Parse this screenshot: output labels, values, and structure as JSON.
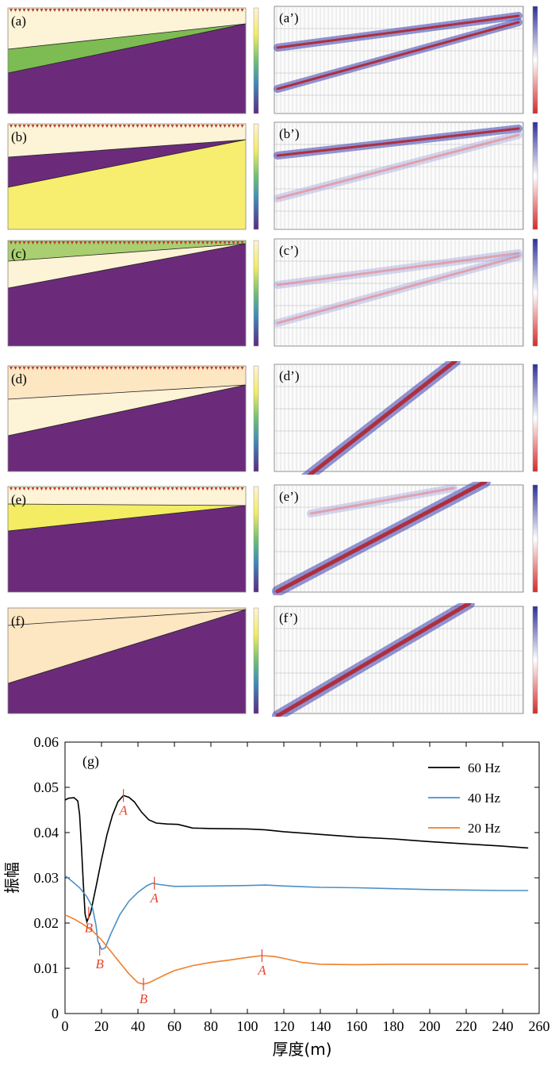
{
  "panels": [
    {
      "id": "a",
      "model_label": "(a)",
      "section_label": "(a’)",
      "model_fill": {
        "top": "#fdf3d6",
        "mid": "#7dbb53",
        "bottom": "#6b2b7a"
      }
    },
    {
      "id": "b",
      "model_label": "(b)",
      "section_label": "(b’)",
      "model_fill": {
        "top": "#fdf3d6",
        "mid": "#6b2b7a",
        "bottom": "#f7ed6e"
      }
    },
    {
      "id": "c",
      "model_label": "(c)",
      "section_label": "(c’)",
      "model_fill": {
        "top": "#a9cf70",
        "mid": "#fdf3d6",
        "bottom": "#6b2b7a"
      }
    },
    {
      "id": "d",
      "model_label": "(d)",
      "section_label": "(d’)",
      "model_fill": {
        "top": "#fde6c2",
        "mid": "#fdf3d6",
        "bottom": "#6b2b7a"
      }
    },
    {
      "id": "e",
      "model_label": "(e)",
      "section_label": "(e’)",
      "model_fill": {
        "top": "#fdf3d6",
        "mid": "#f4ec62",
        "bottom": "#6b2b7a"
      }
    },
    {
      "id": "f",
      "model_label": "(f)",
      "section_label": "(f’)",
      "model_fill": {
        "top": "#fde6c2",
        "mid": "#fde6c2",
        "bottom": "#6b2b7a"
      }
    }
  ],
  "chart_data": {
    "type": "line",
    "panel_label": "(g)",
    "xlabel": "厚度(m)",
    "ylabel": "振幅",
    "xlim": [
      0,
      260
    ],
    "ylim": [
      0,
      0.06
    ],
    "xticks": [
      "0",
      "20",
      "40",
      "60",
      "80",
      "100",
      "120",
      "140",
      "160",
      "180",
      "200",
      "220",
      "240",
      "260"
    ],
    "yticks": [
      "0",
      "0.01",
      "0.02",
      "0.03",
      "0.04",
      "0.05",
      "0.06"
    ],
    "legend_position": "top-right",
    "series": [
      {
        "name": "60 Hz",
        "color": "#000000",
        "points": [
          [
            0,
            0.0472
          ],
          [
            2,
            0.0476
          ],
          [
            5,
            0.0477
          ],
          [
            7,
            0.047
          ],
          [
            8,
            0.044
          ],
          [
            9,
            0.037
          ],
          [
            10,
            0.029
          ],
          [
            11,
            0.022
          ],
          [
            12,
            0.0203
          ],
          [
            14,
            0.0222
          ],
          [
            17,
            0.028
          ],
          [
            20,
            0.034
          ],
          [
            23,
            0.0395
          ],
          [
            26,
            0.0438
          ],
          [
            29,
            0.0468
          ],
          [
            32,
            0.0482
          ],
          [
            35,
            0.0478
          ],
          [
            38,
            0.0468
          ],
          [
            42,
            0.0445
          ],
          [
            46,
            0.0428
          ],
          [
            50,
            0.0421
          ],
          [
            56,
            0.0419
          ],
          [
            62,
            0.0418
          ],
          [
            70,
            0.041
          ],
          [
            80,
            0.0409
          ],
          [
            100,
            0.0408
          ],
          [
            110,
            0.0406
          ],
          [
            120,
            0.0402
          ],
          [
            140,
            0.0396
          ],
          [
            160,
            0.039
          ],
          [
            180,
            0.0386
          ],
          [
            200,
            0.038
          ],
          [
            220,
            0.0375
          ],
          [
            240,
            0.037
          ],
          [
            254,
            0.0366
          ]
        ]
      },
      {
        "name": "40 Hz",
        "color": "#4a90c8",
        "points": [
          [
            0,
            0.0305
          ],
          [
            4,
            0.0292
          ],
          [
            8,
            0.0278
          ],
          [
            12,
            0.0258
          ],
          [
            15,
            0.0235
          ],
          [
            17,
            0.0195
          ],
          [
            18,
            0.016
          ],
          [
            20,
            0.0142
          ],
          [
            22,
            0.0145
          ],
          [
            25,
            0.0175
          ],
          [
            30,
            0.0218
          ],
          [
            35,
            0.0248
          ],
          [
            40,
            0.0268
          ],
          [
            45,
            0.0283
          ],
          [
            48,
            0.0288
          ],
          [
            52,
            0.0285
          ],
          [
            60,
            0.0281
          ],
          [
            80,
            0.0282
          ],
          [
            100,
            0.0283
          ],
          [
            110,
            0.0284
          ],
          [
            120,
            0.0282
          ],
          [
            140,
            0.0279
          ],
          [
            160,
            0.0278
          ],
          [
            180,
            0.0276
          ],
          [
            200,
            0.0274
          ],
          [
            220,
            0.0273
          ],
          [
            240,
            0.0272
          ],
          [
            254,
            0.0272
          ]
        ]
      },
      {
        "name": "20 Hz",
        "color": "#f07f2a",
        "points": [
          [
            0,
            0.0218
          ],
          [
            5,
            0.0209
          ],
          [
            10,
            0.0197
          ],
          [
            15,
            0.0183
          ],
          [
            20,
            0.0163
          ],
          [
            25,
            0.0138
          ],
          [
            30,
            0.0113
          ],
          [
            35,
            0.0088
          ],
          [
            40,
            0.0068
          ],
          [
            43,
            0.0065
          ],
          [
            46,
            0.0068
          ],
          [
            50,
            0.0076
          ],
          [
            55,
            0.0086
          ],
          [
            60,
            0.0095
          ],
          [
            70,
            0.0106
          ],
          [
            80,
            0.0113
          ],
          [
            90,
            0.0118
          ],
          [
            100,
            0.0124
          ],
          [
            108,
            0.0128
          ],
          [
            115,
            0.0126
          ],
          [
            120,
            0.0122
          ],
          [
            130,
            0.0113
          ],
          [
            140,
            0.0109
          ],
          [
            160,
            0.0108
          ],
          [
            180,
            0.0109
          ],
          [
            200,
            0.0109
          ],
          [
            220,
            0.0109
          ],
          [
            240,
            0.0109
          ],
          [
            254,
            0.0109
          ]
        ]
      }
    ],
    "annotations": [
      {
        "text": "A",
        "x": 32,
        "y": 0.0482,
        "color": "#e8452e"
      },
      {
        "text": "A",
        "x": 49,
        "y": 0.0288,
        "color": "#e8452e"
      },
      {
        "text": "A",
        "x": 108,
        "y": 0.0128,
        "color": "#e8452e"
      },
      {
        "text": "B",
        "x": 13,
        "y": 0.0222,
        "color": "#e8452e"
      },
      {
        "text": "B",
        "x": 19,
        "y": 0.0142,
        "color": "#e8452e"
      },
      {
        "text": "B",
        "x": 43,
        "y": 0.0065,
        "color": "#e8452e"
      }
    ]
  }
}
